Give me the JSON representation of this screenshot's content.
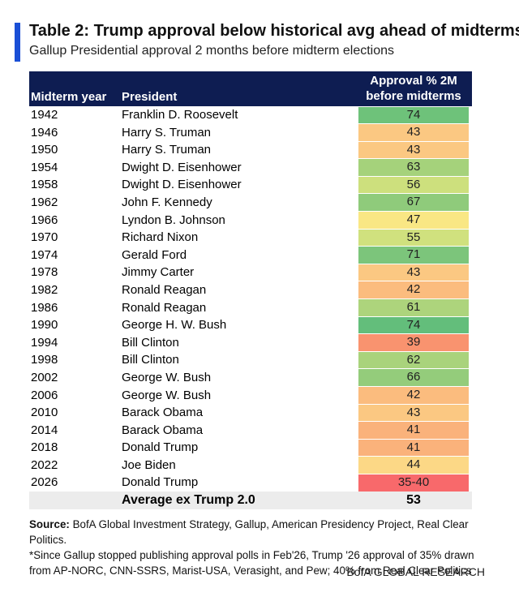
{
  "title": "Table 2: Trump approval below historical avg ahead of midterms",
  "subtitle": "Gallup Presidential approval 2 months before midterm elections",
  "columns": [
    "Midterm year",
    "President",
    "Approval % 2M",
    "before midterms"
  ],
  "chart_data": {
    "type": "table",
    "rows": [
      {
        "year": "1942",
        "president": "Franklin D. Roosevelt",
        "approval": "74",
        "color": "#6ec27a"
      },
      {
        "year": "1946",
        "president": "Harry S. Truman",
        "approval": "43",
        "color": "#fbc882"
      },
      {
        "year": "1950",
        "president": "Harry S. Truman",
        "approval": "43",
        "color": "#fbc882"
      },
      {
        "year": "1954",
        "president": "Dwight D. Eisenhower",
        "approval": "63",
        "color": "#a5d27b"
      },
      {
        "year": "1958",
        "president": "Dwight D. Eisenhower",
        "approval": "56",
        "color": "#cde07d"
      },
      {
        "year": "1962",
        "president": "John F. Kennedy",
        "approval": "67",
        "color": "#8fcb7b"
      },
      {
        "year": "1966",
        "president": "Lyndon B. Johnson",
        "approval": "47",
        "color": "#f9e784"
      },
      {
        "year": "1970",
        "president": "Richard Nixon",
        "approval": "55",
        "color": "#d0e17e"
      },
      {
        "year": "1974",
        "president": "Gerald Ford",
        "approval": "71",
        "color": "#7cc57b"
      },
      {
        "year": "1978",
        "president": "Jimmy Carter",
        "approval": "43",
        "color": "#fbc882"
      },
      {
        "year": "1982",
        "president": "Ronald Reagan",
        "approval": "42",
        "color": "#fbbc7e"
      },
      {
        "year": "1986",
        "president": "Ronald Reagan",
        "approval": "61",
        "color": "#add47c"
      },
      {
        "year": "1990",
        "president": "George H. W. Bush",
        "approval": "74",
        "color": "#63be7b"
      },
      {
        "year": "1994",
        "president": "Bill Clinton",
        "approval": "39",
        "color": "#f9936f"
      },
      {
        "year": "1998",
        "president": "Bill Clinton",
        "approval": "62",
        "color": "#a9d37c"
      },
      {
        "year": "2002",
        "president": "George W. Bush",
        "approval": "66",
        "color": "#94cc7b"
      },
      {
        "year": "2006",
        "president": "George W. Bush",
        "approval": "42",
        "color": "#fbbc7e"
      },
      {
        "year": "2010",
        "president": "Barack Obama",
        "approval": "43",
        "color": "#fbc882"
      },
      {
        "year": "2014",
        "president": "Barack Obama",
        "approval": "41",
        "color": "#fab27b"
      },
      {
        "year": "2018",
        "president": "Donald Trump",
        "approval": "41",
        "color": "#fab27b"
      },
      {
        "year": "2022",
        "president": "Joe Biden",
        "approval": "44",
        "color": "#fcd886"
      },
      {
        "year": "2026",
        "president": "Donald Trump",
        "approval": "35-40",
        "color": "#f8696b"
      }
    ],
    "average_label": "Average ex Trump 2.0",
    "average_value": "53"
  },
  "source_label": "Source:",
  "source_text": " BofA Global Investment Strategy, Gallup, American Presidency Project, Real Clear Politics.",
  "footnote": "*Since Gallup stopped publishing approval polls in Feb'26, Trump '26 approval of 35% drawn from AP-NORC, CNN-SSRS, Marist-USA, Verasight, and Pew; 40% from Real Clear Politics",
  "brand": "BofA GLOBAL RESEARCH",
  "accent_color": "#1a4fd6",
  "header_color": "#0e1d52"
}
